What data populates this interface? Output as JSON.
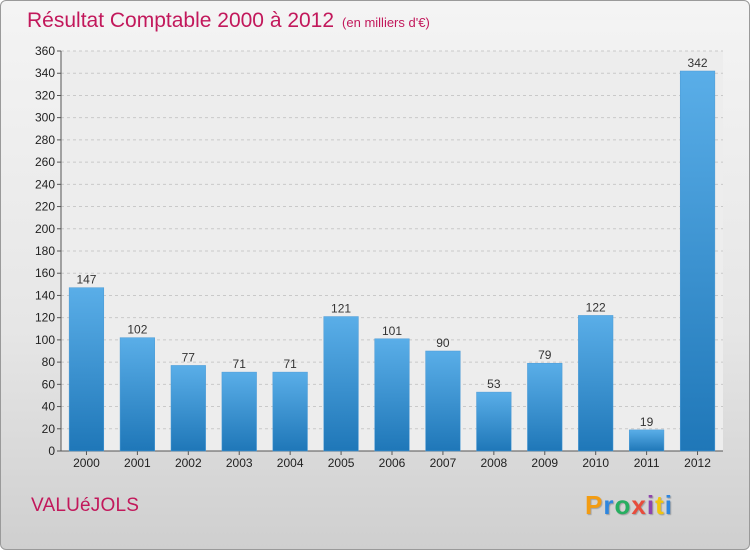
{
  "header": {
    "title": "Résultat Comptable 2000 à 2012",
    "unit": "(en milliers d'€)"
  },
  "footer": {
    "commune": "VALUéJOLS",
    "brand": "Proxiti"
  },
  "colors": {
    "title": "#c2185b",
    "bar_light": "#5aaee8",
    "bar_dark": "#1f77b8"
  },
  "chart_data": {
    "type": "bar",
    "title": "Résultat Comptable 2000 à 2012",
    "subtitle": "(en milliers d'€)",
    "xlabel": "",
    "ylabel": "",
    "categories": [
      "2000",
      "2001",
      "2002",
      "2003",
      "2004",
      "2005",
      "2006",
      "2007",
      "2008",
      "2009",
      "2010",
      "2011",
      "2012"
    ],
    "values": [
      147,
      102,
      77,
      71,
      71,
      121,
      101,
      90,
      53,
      79,
      122,
      19,
      342
    ],
    "ylim": [
      0,
      360
    ],
    "yticks": [
      0,
      20,
      40,
      60,
      80,
      100,
      120,
      140,
      160,
      180,
      200,
      220,
      240,
      260,
      280,
      300,
      320,
      340,
      360
    ],
    "grid": true
  }
}
